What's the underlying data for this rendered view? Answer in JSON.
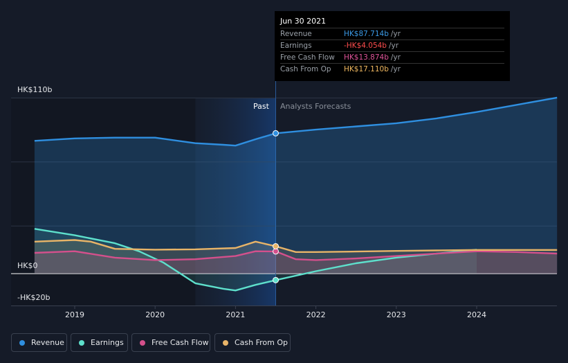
{
  "tooltip": {
    "date": "Jun 30 2021",
    "rows": [
      {
        "label": "Revenue",
        "value": "HK$87.714b",
        "unit": "/yr",
        "color": "#3b9be8"
      },
      {
        "label": "Earnings",
        "value": "-HK$4.054b",
        "unit": "/yr",
        "color": "#ff4d4d"
      },
      {
        "label": "Free Cash Flow",
        "value": "HK$13.874b",
        "unit": "/yr",
        "color": "#e0559a"
      },
      {
        "label": "Cash From Op",
        "value": "HK$17.110b",
        "unit": "/yr",
        "color": "#f0b860"
      }
    ]
  },
  "labels": {
    "past": "Past",
    "forecast": "Analysts Forecasts"
  },
  "legend": [
    {
      "label": "Revenue",
      "color": "#2f8fe0"
    },
    {
      "label": "Earnings",
      "color": "#5ee0cc"
    },
    {
      "label": "Free Cash Flow",
      "color": "#d4508c"
    },
    {
      "label": "Cash From Op",
      "color": "#e8b468"
    }
  ],
  "chart_data": {
    "type": "line",
    "y_tick_labels": [
      "HK$110b",
      "HK$0",
      "-HK$20b"
    ],
    "ylim": [
      -20,
      110
    ],
    "x_tick_labels": [
      "2019",
      "2020",
      "2021",
      "2022",
      "2023",
      "2024"
    ],
    "xlim": [
      2018.5,
      2025.0
    ],
    "past_end": 2021.5,
    "series": [
      {
        "name": "Revenue",
        "color": "#2f8fe0",
        "x": [
          2018.5,
          2019.0,
          2019.5,
          2020.0,
          2020.5,
          2020.85,
          2021.0,
          2021.25,
          2021.5,
          2022.0,
          2022.5,
          2023.0,
          2023.5,
          2024.0,
          2024.5,
          2025.0
        ],
        "y": [
          83,
          84.5,
          85,
          85,
          81.5,
          80.5,
          80,
          84,
          87.7,
          90,
          92,
          94,
          97,
          101,
          105.5,
          110
        ]
      },
      {
        "name": "Earnings",
        "color": "#5ee0cc",
        "x": [
          2018.5,
          2019.0,
          2019.5,
          2019.8,
          2020.1,
          2020.5,
          2020.85,
          2021.0,
          2021.25,
          2021.5,
          2022.0,
          2022.5,
          2023.0,
          2023.5,
          2024.0
        ],
        "y": [
          28,
          24,
          19,
          14,
          7,
          -6,
          -9.5,
          -10.5,
          -7,
          -4.05,
          1.5,
          6.5,
          10,
          12.5,
          15
        ]
      },
      {
        "name": "Free Cash Flow",
        "color": "#d4508c",
        "x": [
          2018.5,
          2019.0,
          2019.5,
          2020.0,
          2020.5,
          2021.0,
          2021.25,
          2021.5,
          2021.75,
          2022.0,
          2022.5,
          2023.0,
          2023.5,
          2024.0,
          2024.5,
          2025.0
        ],
        "y": [
          13,
          14,
          10,
          8.5,
          9,
          11,
          14,
          13.9,
          9,
          8.5,
          9.5,
          11,
          12.5,
          14,
          13.5,
          12.5
        ]
      },
      {
        "name": "Cash From Op",
        "color": "#e8b468",
        "x": [
          2018.5,
          2019.0,
          2019.2,
          2019.5,
          2020.0,
          2020.5,
          2021.0,
          2021.25,
          2021.5,
          2021.75,
          2022.0,
          2022.5,
          2023.0,
          2023.5,
          2024.0,
          2024.5,
          2025.0
        ],
        "y": [
          20,
          21,
          20,
          15.5,
          15,
          15.2,
          16,
          20,
          17.1,
          13.5,
          13.5,
          13.8,
          14.2,
          14.5,
          14.8,
          14.8,
          14.8
        ]
      }
    ]
  }
}
